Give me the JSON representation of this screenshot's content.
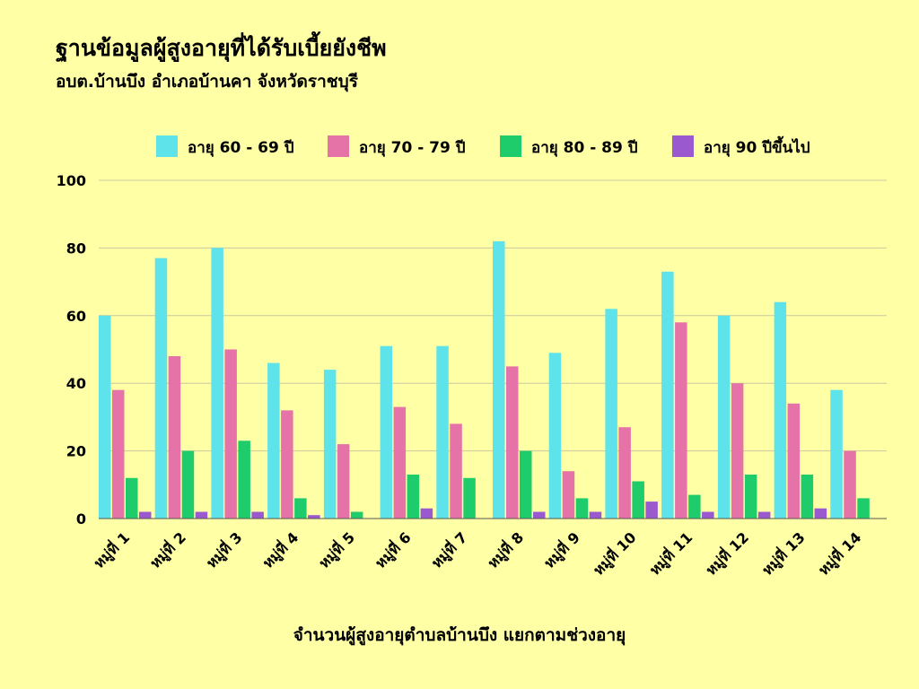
{
  "header": {
    "title": "ฐานข้อมูลผู้สูงอายุที่ได้รับเบี้ยยังชีพ",
    "subtitle": "อบต.บ้านบึง อำเภอบ้านคา จังหวัดราชบุรี"
  },
  "chart_data": {
    "type": "bar",
    "title": "ฐานข้อมูลผู้สูงอายุที่ได้รับเบี้ยยังชีพ",
    "subtitle": "อบต.บ้านบึง อำเภอบ้านคา จังหวัดราชบุรี",
    "xlabel": "จำนวนผู้สูงอายุตำบลบ้านบึง แยกตามช่วงอายุ",
    "ylabel": "",
    "ylim": [
      0,
      100
    ],
    "yticks": [
      0,
      20,
      40,
      60,
      80,
      100
    ],
    "grid": true,
    "legend_position": "top",
    "categories": [
      "หมู่ที่ 1",
      "หมู่ที่ 2",
      "หมู่ที่ 3",
      "หมู่ที่ 4",
      "หมู่ที่ 5",
      "หมู่ที่ 6",
      "หมู่ที่ 7",
      "หมู่ที่ 8",
      "หมู่ที่ 9",
      "หมู่ที่ 10",
      "หมู่ที่ 11",
      "หมู่ที่ 12",
      "หมู่ที่ 13",
      "หมู่ที่ 14"
    ],
    "series": [
      {
        "name": "อายุ 60 - 69 ปี",
        "color": "#5ee3ea",
        "values": [
          60,
          77,
          80,
          46,
          44,
          51,
          51,
          82,
          49,
          62,
          73,
          60,
          64,
          38
        ]
      },
      {
        "name": "อายุ 70 - 79 ปี",
        "color": "#e673a8",
        "values": [
          38,
          48,
          50,
          32,
          22,
          33,
          28,
          45,
          14,
          27,
          58,
          40,
          34,
          20
        ]
      },
      {
        "name": "อายุ 80 - 89 ปี",
        "color": "#1fcc6b",
        "values": [
          12,
          20,
          23,
          6,
          2,
          13,
          12,
          20,
          6,
          11,
          7,
          13,
          13,
          6
        ]
      },
      {
        "name": "อายุ 90 ปีขึ้นไป",
        "color": "#9b59d0",
        "values": [
          2,
          2,
          2,
          1,
          0,
          3,
          0,
          2,
          2,
          5,
          2,
          2,
          3,
          0
        ]
      }
    ]
  }
}
